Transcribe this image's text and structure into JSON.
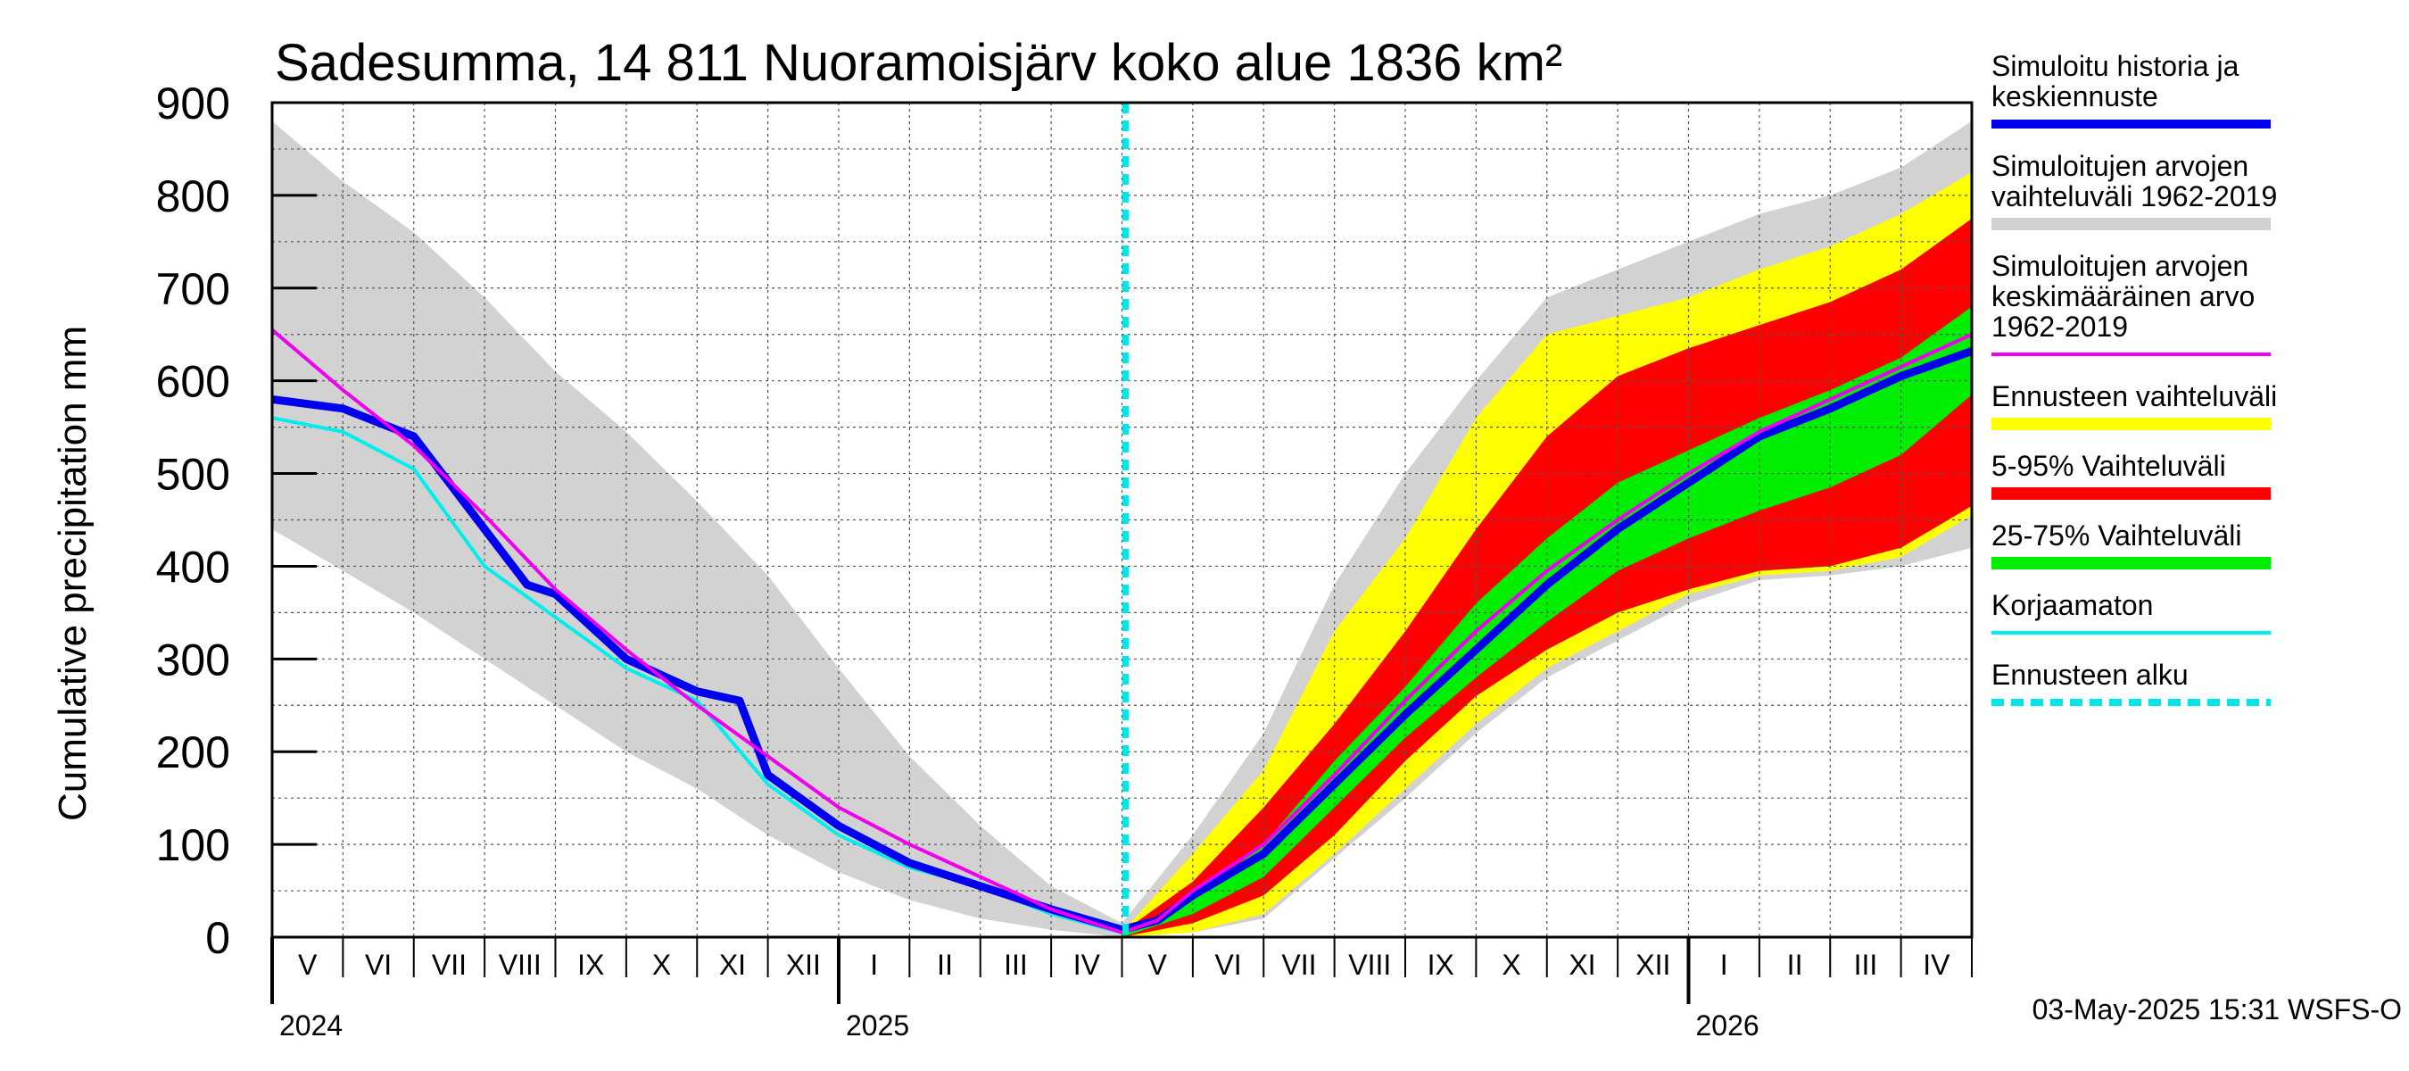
{
  "chart_data": {
    "type": "area",
    "title": "Sadesumma, 14 811 Nuoramoisjärv koko alue 1836 km²",
    "ylabel": "Cumulative precipitation   mm",
    "xlabel": "",
    "ylim": [
      0,
      900
    ],
    "y_ticks": [
      "0",
      "100",
      "200",
      "300",
      "400",
      "500",
      "600",
      "700",
      "800",
      "900"
    ],
    "x_unit": "months since 1 May 2024",
    "xlim": [
      0,
      24
    ],
    "month_labels": [
      "V",
      "VI",
      "VII",
      "VIII",
      "IX",
      "X",
      "XI",
      "XII",
      "I",
      "II",
      "III",
      "IV",
      "V",
      "VI",
      "VII",
      "VIII",
      "IX",
      "X",
      "XI",
      "XII",
      "I",
      "II",
      "III",
      "IV"
    ],
    "year_labels": [
      {
        "label": "2024",
        "month_index": 0
      },
      {
        "label": "2025",
        "month_index": 8
      },
      {
        "label": "2026",
        "month_index": 20
      }
    ],
    "forecast_start_month": 12.05,
    "timestamp": "03-May-2025 15:31 WSFS-O",
    "colors": {
      "history": "#0000ee",
      "sim_range": "#d2d2d2",
      "sim_mean": "#ee00ee",
      "forecast_range": "#ffff00",
      "p5_95": "#ff0000",
      "p25_75": "#00ee00",
      "uncorrected": "#00eeee",
      "forecast_start": "#00e5e5"
    },
    "legend": [
      {
        "key": "history",
        "lines": [
          "Simuloitu historia ja",
          "keskiennuste"
        ],
        "style": "thick"
      },
      {
        "key": "sim_range",
        "lines": [
          "Simuloitujen arvojen",
          "vaihteluväli 1962-2019"
        ],
        "style": "band"
      },
      {
        "key": "sim_mean",
        "lines": [
          "Simuloitujen arvojen",
          "keskimääräinen arvo",
          "   1962-2019"
        ],
        "style": "thin"
      },
      {
        "key": "forecast_range",
        "lines": [
          "Ennusteen vaihteluväli"
        ],
        "style": "band"
      },
      {
        "key": "p5_95",
        "lines": [
          "5-95% Vaihteluväli"
        ],
        "style": "band"
      },
      {
        "key": "p25_75",
        "lines": [
          "25-75% Vaihteluväli"
        ],
        "style": "band"
      },
      {
        "key": "uncorrected",
        "lines": [
          "Korjaamaton"
        ],
        "style": "thin"
      },
      {
        "key": "forecast_start",
        "lines": [
          "Ennusteen alku"
        ],
        "style": "dashed"
      }
    ],
    "series": [
      {
        "name": "Simuloitujen arvojen vaihteluväli 1962-2019 (ylä)",
        "x": [
          0,
          1,
          2,
          3,
          4,
          5,
          6,
          7,
          8,
          9,
          10,
          11,
          12
        ],
        "values": [
          880,
          815,
          760,
          690,
          610,
          545,
          470,
          390,
          290,
          195,
          120,
          55,
          15
        ]
      },
      {
        "name": "Simuloitujen arvojen vaihteluväli 1962-2019 (ala)",
        "x": [
          0,
          1,
          2,
          3,
          4,
          5,
          6,
          7,
          8,
          9,
          10,
          11,
          12
        ],
        "values": [
          440,
          395,
          350,
          300,
          250,
          200,
          160,
          110,
          70,
          40,
          20,
          8,
          0
        ]
      },
      {
        "name": "Simuloitujen arvojen keskimääräinen arvo 1962-2019",
        "x": [
          0,
          1,
          2,
          3,
          4,
          5,
          6,
          7,
          8,
          9,
          10,
          11,
          12,
          12.5,
          13,
          14,
          15,
          16,
          17,
          18,
          19,
          20,
          21,
          22,
          23,
          24
        ],
        "values": [
          655,
          590,
          530,
          455,
          375,
          310,
          250,
          195,
          140,
          100,
          65,
          30,
          5,
          18,
          50,
          100,
          175,
          255,
          330,
          395,
          450,
          500,
          545,
          580,
          615,
          650
        ]
      },
      {
        "name": "Simuloitu historia ja keskiennuste",
        "x": [
          0,
          1,
          2,
          3,
          3.6,
          4,
          5,
          6,
          6.6,
          7,
          8,
          9,
          10,
          11,
          12,
          12.5,
          13,
          14,
          15,
          16,
          17,
          18,
          19,
          20,
          21,
          22,
          23,
          24
        ],
        "values": [
          580,
          570,
          540,
          440,
          380,
          370,
          300,
          265,
          255,
          175,
          120,
          80,
          55,
          30,
          8,
          18,
          45,
          90,
          165,
          240,
          310,
          380,
          440,
          490,
          540,
          570,
          605,
          632
        ]
      },
      {
        "name": "Korjaamaton",
        "x": [
          0,
          1,
          2,
          3,
          4,
          5,
          6,
          7,
          8,
          9,
          10,
          11,
          12
        ],
        "values": [
          560,
          545,
          505,
          400,
          345,
          290,
          255,
          165,
          110,
          75,
          55,
          25,
          5
        ]
      },
      {
        "name": "Ennusteen vaihteluväli (ylä)",
        "x": [
          12,
          13,
          14,
          15,
          16,
          17,
          18,
          19,
          20,
          21,
          22,
          23,
          24
        ],
        "values": [
          5,
          90,
          180,
          330,
          430,
          560,
          650,
          670,
          690,
          720,
          745,
          780,
          825
        ]
      },
      {
        "name": "Ennusteen vaihteluväli (ala)",
        "x": [
          12,
          13,
          14,
          15,
          16,
          17,
          18,
          19,
          20,
          21,
          22,
          23,
          24
        ],
        "values": [
          0,
          5,
          25,
          90,
          160,
          230,
          290,
          330,
          370,
          390,
          395,
          410,
          455
        ]
      },
      {
        "name": "5-95% Vaihteluväli (ylä)",
        "x": [
          12,
          13,
          14,
          15,
          16,
          17,
          18,
          19,
          20,
          21,
          22,
          23,
          24
        ],
        "values": [
          5,
          60,
          140,
          230,
          330,
          440,
          540,
          605,
          635,
          660,
          685,
          720,
          775
        ]
      },
      {
        "name": "5-95% Vaihteluväli (ala)",
        "x": [
          12,
          13,
          14,
          15,
          16,
          17,
          18,
          19,
          20,
          21,
          22,
          23,
          24
        ],
        "values": [
          0,
          15,
          45,
          110,
          190,
          260,
          310,
          350,
          375,
          395,
          400,
          420,
          465
        ]
      },
      {
        "name": "25-75% Vaihteluväli (ylä)",
        "x": [
          12,
          13,
          14,
          15,
          16,
          17,
          18,
          19,
          20,
          21,
          22,
          23,
          24
        ],
        "values": [
          5,
          40,
          100,
          190,
          270,
          360,
          430,
          490,
          525,
          560,
          590,
          625,
          680
        ]
      },
      {
        "name": "25-75% Vaihteluväli (ala)",
        "x": [
          12,
          13,
          14,
          15,
          16,
          17,
          18,
          19,
          20,
          21,
          22,
          23,
          24
        ],
        "values": [
          0,
          25,
          65,
          140,
          215,
          280,
          340,
          395,
          430,
          460,
          485,
          520,
          585
        ]
      },
      {
        "name": "Simuloitujen arvojen vaihteluväli (ennuste, ylä)",
        "x": [
          12,
          13,
          14,
          15,
          16,
          17,
          18,
          19,
          20,
          21,
          22,
          23,
          24
        ],
        "values": [
          15,
          110,
          220,
          380,
          500,
          600,
          690,
          720,
          750,
          780,
          800,
          830,
          880
        ]
      },
      {
        "name": "Simuloitujen arvojen vaihteluväli (ennuste, ala)",
        "x": [
          12,
          13,
          14,
          15,
          16,
          17,
          18,
          19,
          20,
          21,
          22,
          23,
          24
        ],
        "values": [
          0,
          5,
          20,
          85,
          150,
          220,
          280,
          320,
          360,
          385,
          390,
          400,
          420
        ]
      }
    ]
  }
}
